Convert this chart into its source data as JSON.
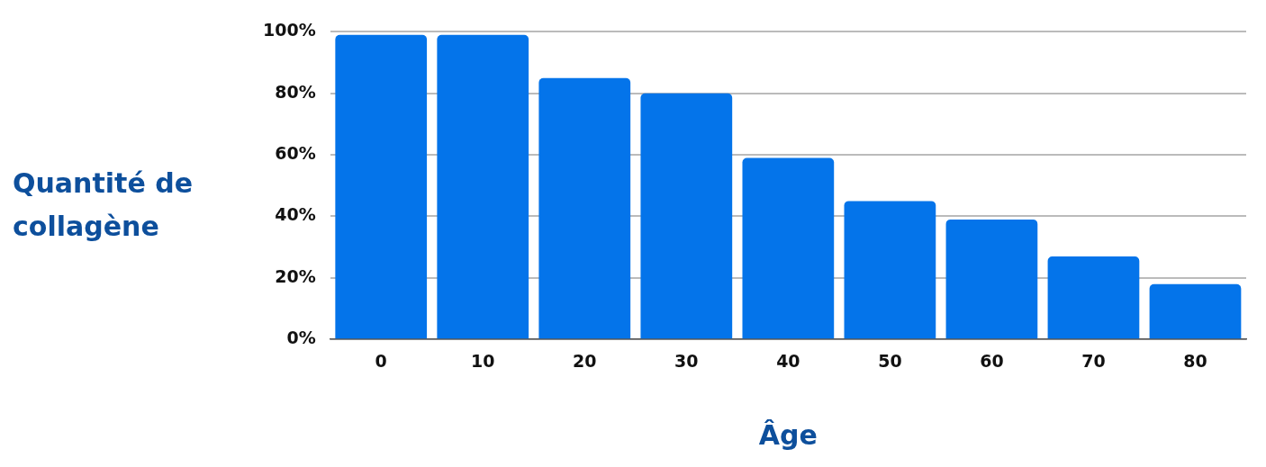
{
  "chart_data": {
    "type": "bar",
    "xlabel": "Âge",
    "ylabel": "Quantité de collagène",
    "categories": [
      "0",
      "10",
      "20",
      "30",
      "40",
      "50",
      "60",
      "70",
      "80"
    ],
    "values": [
      99,
      99,
      85,
      80,
      59,
      45,
      39,
      27,
      18
    ],
    "color": "#0474ea",
    "ylim": [
      0,
      100
    ],
    "yticks": [
      {
        "value": 0,
        "label": "0%"
      },
      {
        "value": 20,
        "label": "20%"
      },
      {
        "value": 40,
        "label": "40%"
      },
      {
        "value": 60,
        "label": "60%"
      },
      {
        "value": 80,
        "label": "80%"
      },
      {
        "value": 100,
        "label": "100%"
      }
    ],
    "grid": "y",
    "legend": false
  }
}
